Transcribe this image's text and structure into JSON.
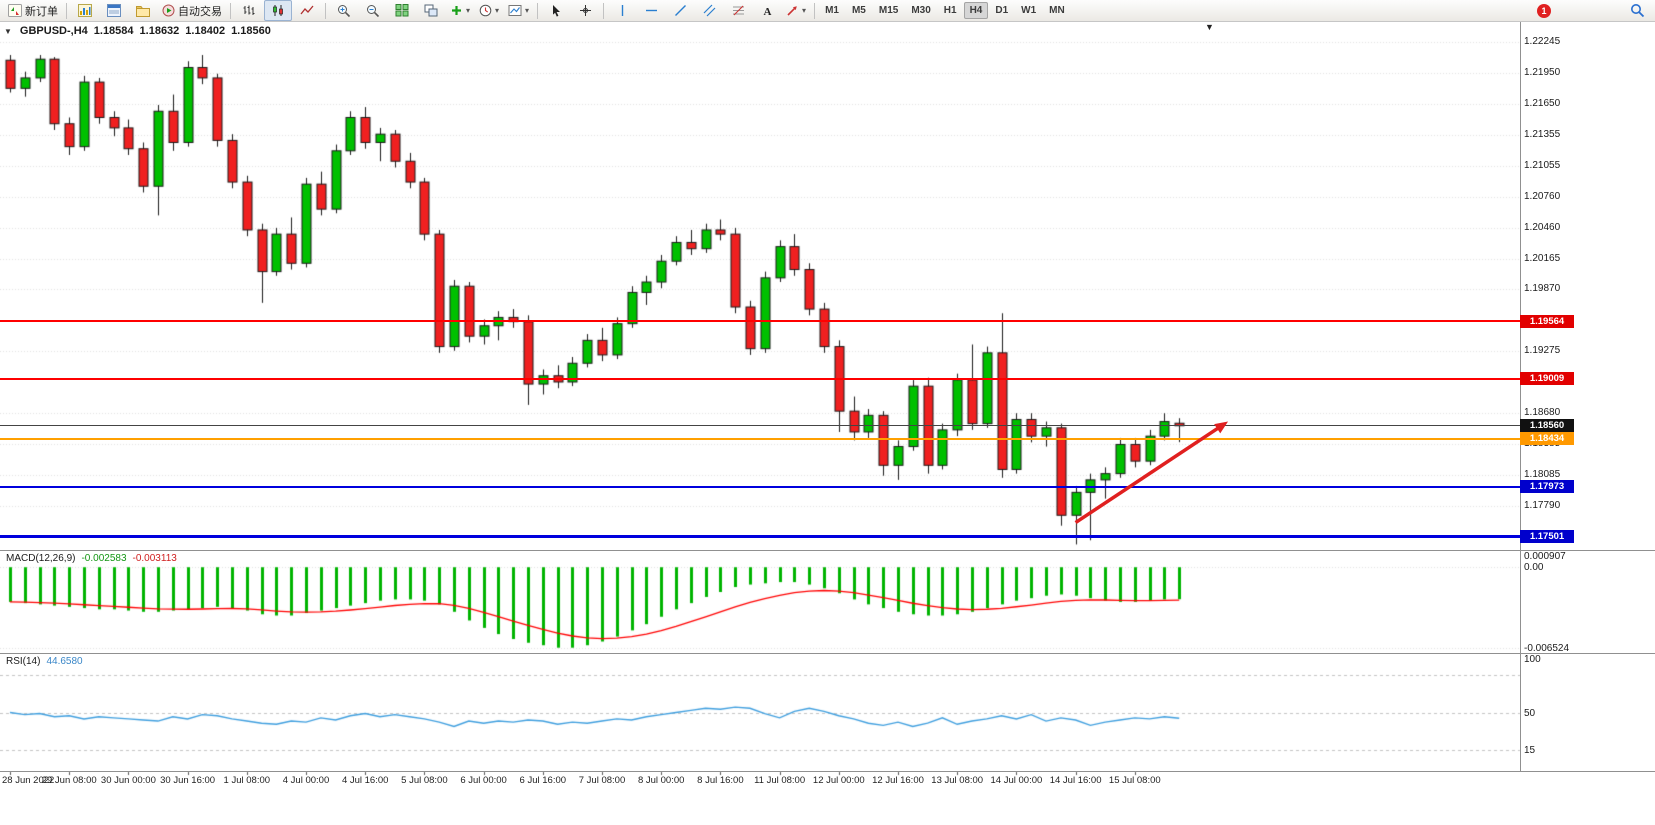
{
  "quote": {
    "symbol_period": "GBPUSD-,H4",
    "open": "1.18584",
    "high": "1.18632",
    "low": "1.18402",
    "close": "1.18560"
  },
  "toolbar": {
    "items": [
      {
        "type": "button",
        "name": "new-order-button",
        "icon": "new-order-icon",
        "label": "新订单"
      },
      {
        "type": "sep"
      },
      {
        "type": "button",
        "name": "market-watch-button",
        "icon": "market-watch-icon"
      },
      {
        "type": "button",
        "name": "data-window-button",
        "icon": "data-window-icon"
      },
      {
        "type": "button",
        "name": "navigator-button",
        "icon": "navigator-icon"
      },
      {
        "type": "button",
        "name": "auto-trading-button",
        "icon": "auto-trading-icon",
        "label": "自动交易"
      },
      {
        "type": "sep"
      },
      {
        "type": "button",
        "name": "bar-chart-button",
        "icon": "bar-chart-icon"
      },
      {
        "type": "button",
        "name": "candle-chart-button",
        "icon": "candle-chart-icon",
        "active": true
      },
      {
        "type": "button",
        "name": "line-chart-button",
        "icon": "line-chart-icon"
      },
      {
        "type": "sep"
      },
      {
        "type": "button",
        "name": "zoom-in-button",
        "icon": "zoom-in-icon"
      },
      {
        "type": "button",
        "name": "zoom-out-button",
        "icon": "zoom-out-icon"
      },
      {
        "type": "button",
        "name": "tile-windows-button",
        "icon": "tile-windows-icon"
      },
      {
        "type": "button",
        "name": "cascade-windows-button",
        "icon": "cascade-windows-icon"
      },
      {
        "type": "button",
        "name": "indicators-button",
        "icon": "indicators-icon",
        "caret": true
      },
      {
        "type": "button",
        "name": "periods-button",
        "icon": "periods-icon",
        "caret": true
      },
      {
        "type": "button",
        "name": "templates-button",
        "icon": "templates-icon",
        "caret": true
      },
      {
        "type": "sep"
      },
      {
        "type": "button",
        "name": "cursor-button",
        "icon": "cursor-icon"
      },
      {
        "type": "button",
        "name": "crosshair-button",
        "icon": "crosshair-icon"
      },
      {
        "type": "sep"
      },
      {
        "type": "button",
        "name": "vertical-line-button",
        "icon": "vline-icon"
      },
      {
        "type": "button",
        "name": "horizontal-line-button",
        "icon": "hline-icon"
      },
      {
        "type": "button",
        "name": "trendline-button",
        "icon": "trendline-icon"
      },
      {
        "type": "button",
        "name": "channel-button",
        "icon": "channel-icon"
      },
      {
        "type": "button",
        "name": "fibonacci-button",
        "icon": "fibonacci-icon"
      },
      {
        "type": "button",
        "name": "text-label-button",
        "icon": "text-icon"
      },
      {
        "type": "button",
        "name": "arrows-button",
        "icon": "arrows-icon",
        "caret": true
      },
      {
        "type": "sep"
      },
      {
        "type": "tf",
        "label": "M1"
      },
      {
        "type": "tf",
        "label": "M5"
      },
      {
        "type": "tf",
        "label": "M15"
      },
      {
        "type": "tf",
        "label": "M30"
      },
      {
        "type": "tf",
        "label": "H1"
      },
      {
        "type": "tf",
        "label": "H4",
        "active": true
      },
      {
        "type": "tf",
        "label": "D1"
      },
      {
        "type": "tf",
        "label": "W1"
      },
      {
        "type": "tf",
        "label": "MN"
      },
      {
        "type": "spacer"
      },
      {
        "type": "badge",
        "name": "notifications-badge",
        "label": "1",
        "color": "#e02020"
      },
      {
        "type": "gap"
      },
      {
        "type": "button",
        "name": "search-button",
        "icon": "search-icon"
      }
    ]
  },
  "chart_data": {
    "type": "candlestick",
    "symbol": "GBPUSD-",
    "period": "H4",
    "ylim": [
      1.17501,
      1.22245
    ],
    "colors": {
      "up": "#00c000",
      "down": "#f02020",
      "wick": "#1a1a1a",
      "grid": "#e2e2e2",
      "background": "#ffffff"
    },
    "price_axis_labels": [
      "1.22245",
      "1.21950",
      "1.21650",
      "1.21355",
      "1.21055",
      "1.20760",
      "1.20460",
      "1.20165",
      "1.19870",
      "1.19275",
      "1.18680",
      "1.18385",
      "1.18085",
      "1.17790"
    ],
    "price_badges": [
      {
        "text": "1.19564",
        "price": 1.19564,
        "color": "#e20000"
      },
      {
        "text": "1.19009",
        "price": 1.19009,
        "color": "#e20000"
      },
      {
        "text": "1.18560",
        "price": 1.1856,
        "color": "#111111"
      },
      {
        "text": "1.18434",
        "price": 1.18434,
        "color": "#ff9900"
      },
      {
        "text": "1.17973",
        "price": 1.17973,
        "color": "#0000cc"
      },
      {
        "text": "1.17501",
        "price": 1.17501,
        "color": "#0000cc"
      }
    ],
    "hlines": [
      {
        "name": "resistance-line-1",
        "price": 1.19564,
        "color": "#ff0000",
        "width": 2
      },
      {
        "name": "resistance-line-2",
        "price": 1.19009,
        "color": "#ff0000",
        "width": 2
      },
      {
        "name": "bid-price-line",
        "price": 1.1856,
        "color": "#444444",
        "width": 1
      },
      {
        "name": "support-line-orange",
        "price": 1.18434,
        "color": "#ffa000",
        "width": 2
      },
      {
        "name": "support-line-blue-1",
        "price": 1.17973,
        "color": "#0000dd",
        "width": 2
      },
      {
        "name": "support-line-blue-2",
        "price": 1.17501,
        "color": "#0000dd",
        "width": 3
      }
    ],
    "candles": [
      [
        1.2207,
        1.2212,
        1.2176,
        1.218
      ],
      [
        1.218,
        1.2196,
        1.2172,
        1.219
      ],
      [
        1.219,
        1.2212,
        1.2186,
        1.2208
      ],
      [
        1.2208,
        1.221,
        1.214,
        1.2146
      ],
      [
        1.2146,
        1.2152,
        1.2116,
        1.2124
      ],
      [
        1.2124,
        1.2192,
        1.212,
        1.2186
      ],
      [
        1.2186,
        1.219,
        1.2146,
        1.2152
      ],
      [
        1.2152,
        1.2158,
        1.2134,
        1.2142
      ],
      [
        1.2142,
        1.215,
        1.2116,
        1.2122
      ],
      [
        1.2122,
        1.2128,
        1.208,
        1.2086
      ],
      [
        1.2086,
        1.2164,
        1.2058,
        1.2158
      ],
      [
        1.2158,
        1.2174,
        1.212,
        1.2128
      ],
      [
        1.2128,
        1.2206,
        1.2124,
        1.22
      ],
      [
        1.22,
        1.2212,
        1.2184,
        1.219
      ],
      [
        1.219,
        1.2194,
        1.2124,
        1.213
      ],
      [
        1.213,
        1.2136,
        1.2084,
        1.209
      ],
      [
        1.209,
        1.2096,
        1.2038,
        1.2044
      ],
      [
        1.2044,
        1.205,
        1.1974,
        1.2004
      ],
      [
        1.2004,
        1.2046,
        1.2,
        1.204
      ],
      [
        1.204,
        1.2056,
        1.2006,
        1.2012
      ],
      [
        1.2012,
        1.2094,
        1.2008,
        1.2088
      ],
      [
        1.2088,
        1.21,
        1.2058,
        1.2064
      ],
      [
        1.2064,
        1.2126,
        1.206,
        1.212
      ],
      [
        1.212,
        1.2158,
        1.2116,
        1.2152
      ],
      [
        1.2152,
        1.2162,
        1.2122,
        1.2128
      ],
      [
        1.2128,
        1.2142,
        1.211,
        1.2136
      ],
      [
        1.2136,
        1.214,
        1.2104,
        1.211
      ],
      [
        1.211,
        1.2118,
        1.2084,
        1.209
      ],
      [
        1.209,
        1.2094,
        1.2034,
        1.204
      ],
      [
        1.204,
        1.2044,
        1.1926,
        1.1932
      ],
      [
        1.1932,
        1.1996,
        1.1928,
        1.199
      ],
      [
        1.199,
        1.1994,
        1.1936,
        1.1942
      ],
      [
        1.1942,
        1.1958,
        1.1934,
        1.1952
      ],
      [
        1.1952,
        1.1966,
        1.1938,
        1.196
      ],
      [
        1.196,
        1.1968,
        1.195,
        1.1956
      ],
      [
        1.1956,
        1.1962,
        1.1876,
        1.1896
      ],
      [
        1.1896,
        1.191,
        1.1886,
        1.1904
      ],
      [
        1.1904,
        1.1914,
        1.1892,
        1.1898
      ],
      [
        1.1898,
        1.1922,
        1.1894,
        1.1916
      ],
      [
        1.1916,
        1.1944,
        1.1912,
        1.1938
      ],
      [
        1.1938,
        1.195,
        1.1918,
        1.1924
      ],
      [
        1.1924,
        1.196,
        1.192,
        1.1954
      ],
      [
        1.1954,
        1.199,
        1.195,
        1.1984
      ],
      [
        1.1984,
        1.2,
        1.1972,
        1.1994
      ],
      [
        1.1994,
        1.202,
        1.1988,
        1.2014
      ],
      [
        1.2014,
        1.2038,
        1.201,
        1.2032
      ],
      [
        1.2032,
        1.2044,
        1.202,
        1.2026
      ],
      [
        1.2026,
        1.205,
        1.2022,
        1.2044
      ],
      [
        1.2044,
        1.2054,
        1.2034,
        1.204
      ],
      [
        1.204,
        1.2046,
        1.1964,
        1.197
      ],
      [
        1.197,
        1.1976,
        1.1924,
        1.193
      ],
      [
        1.193,
        1.2004,
        1.1926,
        1.1998
      ],
      [
        1.1998,
        1.2034,
        1.1994,
        1.2028
      ],
      [
        1.2028,
        1.204,
        1.2,
        1.2006
      ],
      [
        1.2006,
        1.2012,
        1.1962,
        1.1968
      ],
      [
        1.1968,
        1.1974,
        1.1926,
        1.1932
      ],
      [
        1.1932,
        1.1938,
        1.185,
        1.187
      ],
      [
        1.187,
        1.1884,
        1.1842,
        1.185
      ],
      [
        1.185,
        1.1872,
        1.1844,
        1.1866
      ],
      [
        1.1866,
        1.187,
        1.1808,
        1.1818
      ],
      [
        1.1818,
        1.1842,
        1.1804,
        1.1836
      ],
      [
        1.1836,
        1.19,
        1.1832,
        1.1894
      ],
      [
        1.1894,
        1.1902,
        1.181,
        1.1818
      ],
      [
        1.1818,
        1.1858,
        1.1814,
        1.1852
      ],
      [
        1.1852,
        1.1906,
        1.1846,
        1.19
      ],
      [
        1.19,
        1.1934,
        1.1852,
        1.1858
      ],
      [
        1.1858,
        1.1932,
        1.1854,
        1.1926
      ],
      [
        1.1926,
        1.1964,
        1.1806,
        1.1814
      ],
      [
        1.1814,
        1.1868,
        1.181,
        1.1862
      ],
      [
        1.1862,
        1.1868,
        1.184,
        1.1846
      ],
      [
        1.1846,
        1.186,
        1.1836,
        1.1854
      ],
      [
        1.1854,
        1.1858,
        1.176,
        1.177
      ],
      [
        1.177,
        1.1798,
        1.1742,
        1.1792
      ],
      [
        1.1792,
        1.181,
        1.1746,
        1.1804
      ],
      [
        1.1804,
        1.1816,
        1.1786,
        1.181
      ],
      [
        1.181,
        1.1844,
        1.1806,
        1.1838
      ],
      [
        1.1838,
        1.1844,
        1.1816,
        1.1822
      ],
      [
        1.1822,
        1.1852,
        1.1818,
        1.1846
      ],
      [
        1.1846,
        1.1868,
        1.1842,
        1.186
      ],
      [
        1.18584,
        1.18632,
        1.18402,
        1.1856
      ]
    ],
    "time_labels": [
      "28 Jun 2022",
      "29 Jun 08:00",
      "30 Jun 00:00",
      "30 Jun 16:00",
      "1 Jul 08:00",
      "4 Jul 00:00",
      "4 Jul 16:00",
      "5 Jul 08:00",
      "6 Jul 00:00",
      "6 Jul 16:00",
      "7 Jul 08:00",
      "8 Jul 00:00",
      "8 Jul 16:00",
      "11 Jul 08:00",
      "12 Jul 00:00",
      "12 Jul 16:00",
      "13 Jul 08:00",
      "14 Jul 00:00",
      "14 Jul 16:00",
      "15 Jul 08:00"
    ],
    "trend_arrow": {
      "start_bar": 72,
      "start_price": 1.1763,
      "end_bar": 82.3,
      "end_price": 1.186,
      "color": "#e02020",
      "width": 3.5
    },
    "macd": {
      "label": "MACD(12,26,9)",
      "main_value": "-0.002583",
      "signal_value": "-0.003113",
      "ylim": [
        -0.006524,
        0.000907
      ],
      "axis_labels": [
        "0.000907",
        "0.00",
        "-0.006524"
      ],
      "histogram_color": "#00b400",
      "signal_color": "#ff0000",
      "values": [
        -0.0028,
        -0.0029,
        -0.003,
        -0.0031,
        -0.0032,
        -0.0033,
        -0.0034,
        -0.0034,
        -0.0035,
        -0.0036,
        -0.0036,
        -0.0035,
        -0.0034,
        -0.0033,
        -0.0032,
        -0.0033,
        -0.0035,
        -0.0038,
        -0.0039,
        -0.0039,
        -0.0037,
        -0.0035,
        -0.0033,
        -0.0031,
        -0.0029,
        -0.0027,
        -0.0026,
        -0.0026,
        -0.0027,
        -0.003,
        -0.0036,
        -0.0043,
        -0.0049,
        -0.0054,
        -0.0058,
        -0.0061,
        -0.0063,
        -0.0065,
        -0.0065,
        -0.0063,
        -0.006,
        -0.0056,
        -0.0051,
        -0.0046,
        -0.004,
        -0.0034,
        -0.0029,
        -0.0024,
        -0.002,
        -0.0016,
        -0.0014,
        -0.0013,
        -0.0012,
        -0.0012,
        -0.0014,
        -0.0017,
        -0.0021,
        -0.0026,
        -0.003,
        -0.0033,
        -0.0036,
        -0.0038,
        -0.0039,
        -0.0039,
        -0.0038,
        -0.0036,
        -0.0033,
        -0.003,
        -0.0027,
        -0.0025,
        -0.0023,
        -0.0022,
        -0.0023,
        -0.0025,
        -0.0027,
        -0.0028,
        -0.0028,
        -0.0027,
        -0.0026,
        -0.002583
      ]
    },
    "rsi": {
      "label": "RSI(14)",
      "value": "44.6580",
      "ylim": [
        0,
        100
      ],
      "axis_labels": [
        "100",
        "50",
        "15"
      ],
      "levels": [
        85,
        50,
        15
      ],
      "line_color": "#3f9fdf",
      "values": [
        50,
        48,
        49,
        46,
        47,
        44,
        46,
        45,
        44,
        43,
        42,
        46,
        44,
        48,
        47,
        44,
        42,
        40,
        39,
        42,
        41,
        45,
        43,
        47,
        49,
        46,
        48,
        46,
        44,
        41,
        37,
        42,
        40,
        42,
        41,
        43,
        42,
        39,
        41,
        40,
        42,
        44,
        43,
        46,
        48,
        50,
        52,
        54,
        53,
        55,
        54,
        49,
        45,
        51,
        54,
        51,
        47,
        44,
        40,
        38,
        41,
        37,
        40,
        45,
        39,
        42,
        44,
        47,
        44,
        48,
        42,
        45,
        43,
        38,
        41,
        43,
        45,
        44,
        46,
        44.658
      ]
    }
  }
}
